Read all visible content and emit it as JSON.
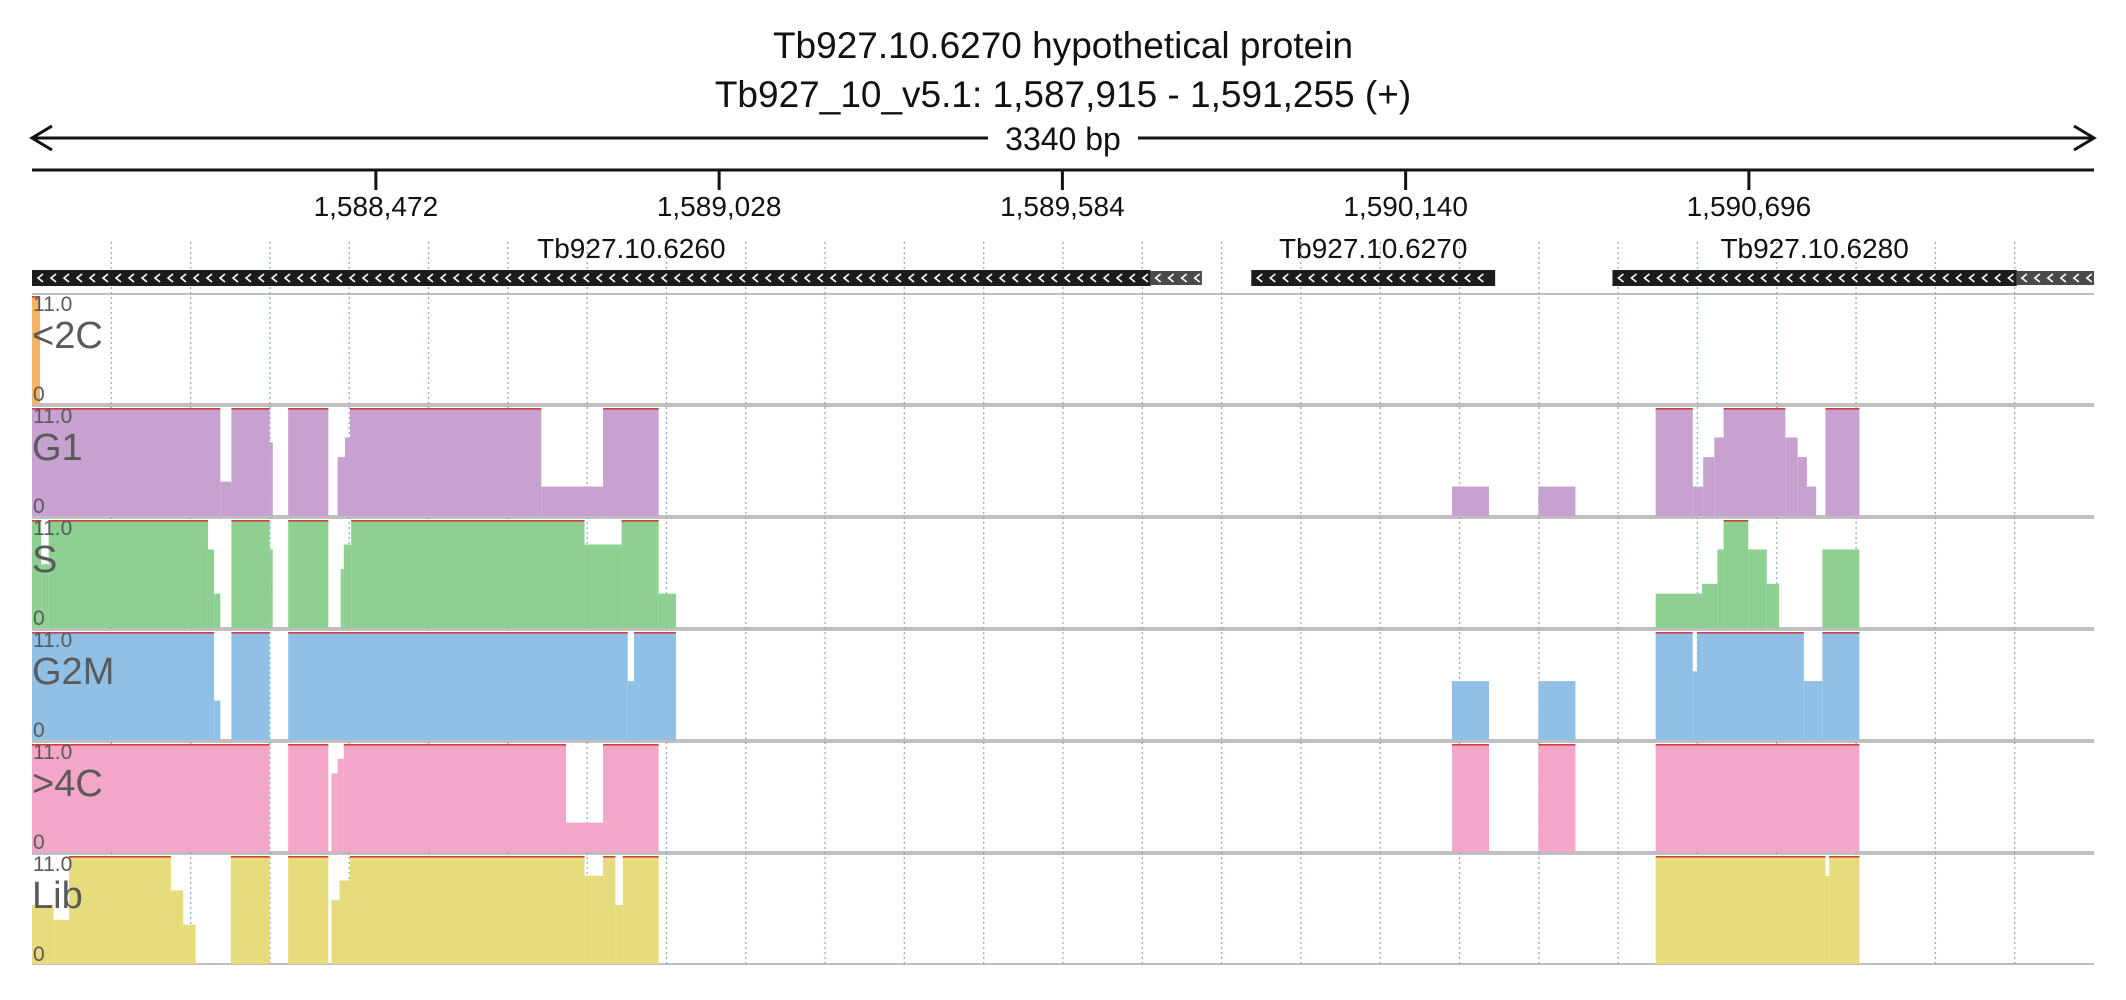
{
  "header": {
    "title": "Tb927.10.6270  hypothetical protein",
    "location": "Tb927_10_v5.1: 1,587,915 - 1,591,255 (+)",
    "length_label": "3340 bp"
  },
  "region": {
    "chromosome": "Tb927_10_v5.1",
    "start": 1587915,
    "end": 1591255,
    "strand": "+"
  },
  "ruler": {
    "ticks": [
      {
        "pos": 1588472,
        "label": "1,588,472"
      },
      {
        "pos": 1589028,
        "label": "1,589,028"
      },
      {
        "pos": 1589584,
        "label": "1,589,584"
      },
      {
        "pos": 1590140,
        "label": "1,590,140"
      },
      {
        "pos": 1590696,
        "label": "1,590,696"
      }
    ]
  },
  "genes": [
    {
      "name": "Tb927.10.6260",
      "strand": "-",
      "cds_start": 1587915,
      "cds_end": 1589727,
      "utr_end": 1589810
    },
    {
      "name": "Tb927.10.6270",
      "strand": "-",
      "cds_start": 1589890,
      "cds_end": 1590285,
      "utr_end": null
    },
    {
      "name": "Tb927.10.6280",
      "strand": "-",
      "cds_start": 1590475,
      "cds_end": 1591130,
      "utr_end": 1591255
    }
  ],
  "tracks": [
    {
      "label": "<2C",
      "max_label": "11.0",
      "min_label": "0",
      "max": 11.0,
      "color": "#f5b366",
      "segments": [
        {
          "start": 1587915,
          "end": 1587928,
          "value": 11.0
        }
      ]
    },
    {
      "label": "G1",
      "max_label": "11.0",
      "min_label": "0",
      "max": 11.0,
      "color": "#c7a1cf",
      "segments": [
        {
          "start": 1587915,
          "end": 1588220,
          "value": 11.0
        },
        {
          "start": 1588220,
          "end": 1588238,
          "value": 3.5
        },
        {
          "start": 1588238,
          "end": 1588300,
          "value": 11.0
        },
        {
          "start": 1588300,
          "end": 1588305,
          "value": 7.5
        },
        {
          "start": 1588330,
          "end": 1588395,
          "value": 11.0
        },
        {
          "start": 1588410,
          "end": 1588422,
          "value": 6.0
        },
        {
          "start": 1588422,
          "end": 1588430,
          "value": 8.0
        },
        {
          "start": 1588430,
          "end": 1588740,
          "value": 11.0
        },
        {
          "start": 1588740,
          "end": 1588840,
          "value": 3.0
        },
        {
          "start": 1588840,
          "end": 1588930,
          "value": 11.0
        },
        {
          "start": 1590215,
          "end": 1590275,
          "value": 3.0
        },
        {
          "start": 1590355,
          "end": 1590415,
          "value": 3.0
        },
        {
          "start": 1590545,
          "end": 1590605,
          "value": 11.0
        },
        {
          "start": 1590605,
          "end": 1590622,
          "value": 3.0
        },
        {
          "start": 1590622,
          "end": 1590640,
          "value": 6.0
        },
        {
          "start": 1590640,
          "end": 1590655,
          "value": 8.0
        },
        {
          "start": 1590655,
          "end": 1590755,
          "value": 11.0
        },
        {
          "start": 1590755,
          "end": 1590775,
          "value": 8.0
        },
        {
          "start": 1590775,
          "end": 1590790,
          "value": 6.0
        },
        {
          "start": 1590790,
          "end": 1590805,
          "value": 3.0
        },
        {
          "start": 1590820,
          "end": 1590875,
          "value": 11.0
        }
      ]
    },
    {
      "label": "S",
      "max_label": "11.0",
      "min_label": "0",
      "max": 11.0,
      "color": "#8ed091",
      "segments": [
        {
          "start": 1587915,
          "end": 1587930,
          "value": 11.0
        },
        {
          "start": 1587930,
          "end": 1587942,
          "value": 6.5
        },
        {
          "start": 1587942,
          "end": 1588200,
          "value": 11.0
        },
        {
          "start": 1588200,
          "end": 1588210,
          "value": 8.0
        },
        {
          "start": 1588210,
          "end": 1588220,
          "value": 3.5
        },
        {
          "start": 1588238,
          "end": 1588300,
          "value": 11.0
        },
        {
          "start": 1588300,
          "end": 1588305,
          "value": 8.0
        },
        {
          "start": 1588330,
          "end": 1588395,
          "value": 11.0
        },
        {
          "start": 1588415,
          "end": 1588420,
          "value": 6.0
        },
        {
          "start": 1588420,
          "end": 1588432,
          "value": 8.5
        },
        {
          "start": 1588432,
          "end": 1588810,
          "value": 11.0
        },
        {
          "start": 1588810,
          "end": 1588870,
          "value": 8.5
        },
        {
          "start": 1588870,
          "end": 1588930,
          "value": 11.0
        },
        {
          "start": 1588930,
          "end": 1588958,
          "value": 3.5
        },
        {
          "start": 1590545,
          "end": 1590620,
          "value": 3.5
        },
        {
          "start": 1590620,
          "end": 1590645,
          "value": 4.5
        },
        {
          "start": 1590645,
          "end": 1590655,
          "value": 8.0
        },
        {
          "start": 1590655,
          "end": 1590695,
          "value": 11.0
        },
        {
          "start": 1590695,
          "end": 1590725,
          "value": 8.0
        },
        {
          "start": 1590725,
          "end": 1590745,
          "value": 4.5
        },
        {
          "start": 1590815,
          "end": 1590875,
          "value": 8.0
        }
      ]
    },
    {
      "label": "G2M",
      "max_label": "11.0",
      "min_label": "0",
      "max": 11.0,
      "color": "#90c0e6",
      "segments": [
        {
          "start": 1587915,
          "end": 1588210,
          "value": 11.0
        },
        {
          "start": 1588210,
          "end": 1588220,
          "value": 4.0
        },
        {
          "start": 1588238,
          "end": 1588300,
          "value": 11.0
        },
        {
          "start": 1588330,
          "end": 1588880,
          "value": 11.0
        },
        {
          "start": 1588880,
          "end": 1588890,
          "value": 6.0
        },
        {
          "start": 1588890,
          "end": 1588958,
          "value": 11.0
        },
        {
          "start": 1590215,
          "end": 1590275,
          "value": 6.0
        },
        {
          "start": 1590355,
          "end": 1590415,
          "value": 6.0
        },
        {
          "start": 1590545,
          "end": 1590605,
          "value": 11.0
        },
        {
          "start": 1590605,
          "end": 1590612,
          "value": 7.0
        },
        {
          "start": 1590612,
          "end": 1590785,
          "value": 11.0
        },
        {
          "start": 1590785,
          "end": 1590815,
          "value": 6.0
        },
        {
          "start": 1590815,
          "end": 1590875,
          "value": 11.0
        }
      ]
    },
    {
      "label": ">4C",
      "max_label": "11.0",
      "min_label": "0",
      "max": 11.0,
      "color": "#f4a6c9",
      "segments": [
        {
          "start": 1587915,
          "end": 1588300,
          "value": 11.0
        },
        {
          "start": 1588330,
          "end": 1588395,
          "value": 11.0
        },
        {
          "start": 1588400,
          "end": 1588410,
          "value": 8.0
        },
        {
          "start": 1588410,
          "end": 1588420,
          "value": 9.5
        },
        {
          "start": 1588420,
          "end": 1588780,
          "value": 11.0
        },
        {
          "start": 1588780,
          "end": 1588840,
          "value": 3.0
        },
        {
          "start": 1588840,
          "end": 1588930,
          "value": 11.0
        },
        {
          "start": 1590215,
          "end": 1590275,
          "value": 11.0
        },
        {
          "start": 1590355,
          "end": 1590415,
          "value": 11.0
        },
        {
          "start": 1590545,
          "end": 1590875,
          "value": 11.0
        }
      ]
    },
    {
      "label": "Lib",
      "max_label": "11.0",
      "min_label": "0",
      "max": 11.0,
      "color": "#e7dc7b",
      "segments": [
        {
          "start": 1587915,
          "end": 1587950,
          "value": 6.0
        },
        {
          "start": 1587950,
          "end": 1587975,
          "value": 4.5
        },
        {
          "start": 1587975,
          "end": 1588140,
          "value": 11.0
        },
        {
          "start": 1588140,
          "end": 1588160,
          "value": 7.5
        },
        {
          "start": 1588160,
          "end": 1588180,
          "value": 4.0
        },
        {
          "start": 1588237,
          "end": 1588300,
          "value": 11.0
        },
        {
          "start": 1588330,
          "end": 1588395,
          "value": 11.0
        },
        {
          "start": 1588400,
          "end": 1588413,
          "value": 6.5
        },
        {
          "start": 1588413,
          "end": 1588430,
          "value": 8.5
        },
        {
          "start": 1588430,
          "end": 1588810,
          "value": 11.0
        },
        {
          "start": 1588810,
          "end": 1588840,
          "value": 9.0
        },
        {
          "start": 1588840,
          "end": 1588860,
          "value": 11.0
        },
        {
          "start": 1588860,
          "end": 1588872,
          "value": 6.0
        },
        {
          "start": 1588872,
          "end": 1588930,
          "value": 11.0
        },
        {
          "start": 1590545,
          "end": 1590820,
          "value": 11.0
        },
        {
          "start": 1590820,
          "end": 1590826,
          "value": 9.0
        },
        {
          "start": 1590826,
          "end": 1590875,
          "value": 11.0
        }
      ]
    }
  ],
  "colors": {
    "axis": "#111111",
    "gene_body": "#1c1c1c",
    "gene_utr": "#4a4a4a",
    "grid": "#8fb4dc",
    "track_divider": "#9a9a9a",
    "track_label": "#5a5a5a",
    "clip_line": "#d04040"
  }
}
